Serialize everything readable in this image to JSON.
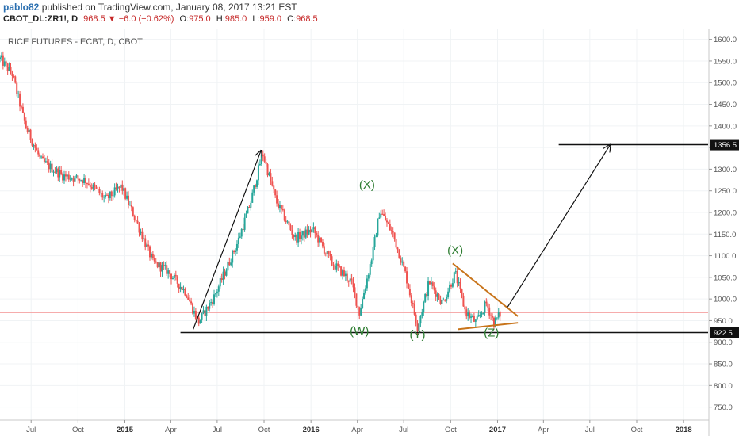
{
  "header": {
    "author": "pablo82",
    "published_text": "published on TradingView.com, January 08, 2017 13:21 EST",
    "symbol": "CBOT_DL:ZR1!, D",
    "last": "968.5",
    "change": "−6.0 (−0.62%)",
    "open_label": "O:",
    "open": "975.0",
    "high_label": "H:",
    "high": "985.0",
    "low_label": "L:",
    "low": "959.0",
    "close_label": "C:",
    "close": "968.5"
  },
  "colors": {
    "up": "#26a69a",
    "down": "#ef5350",
    "wave_label": "#2e7d32",
    "triangle": "#c8741a",
    "price_line": "#f4a0a0",
    "grid": "#f0f3f5",
    "axis_text": "#555555"
  },
  "chart_data": {
    "type": "candlestick",
    "title": "RICE FUTURES - ECBT, D, CBOT",
    "x_tick_labels": [
      "Jul",
      "Oct",
      "2015",
      "Apr",
      "Jul",
      "Oct",
      "2016",
      "Apr",
      "Jul",
      "Oct",
      "2017",
      "Apr",
      "Jul",
      "Oct",
      "2018"
    ],
    "x_tick_dates": [
      "2014-07-01",
      "2014-10-01",
      "2015-01-01",
      "2015-04-01",
      "2015-07-01",
      "2015-10-01",
      "2016-01-01",
      "2016-04-01",
      "2016-07-01",
      "2016-10-01",
      "2017-01-01",
      "2017-04-01",
      "2017-07-01",
      "2017-10-01",
      "2018-01-01"
    ],
    "x_range": [
      "2014-05-01",
      "2018-02-18"
    ],
    "y_ticks": [
      750.0,
      800.0,
      850.0,
      900.0,
      950.0,
      1000.0,
      1050.0,
      1100.0,
      1150.0,
      1200.0,
      1250.0,
      1300.0,
      1350.0,
      1400.0,
      1450.0,
      1500.0,
      1550.0,
      1600.0
    ],
    "y_tick_labels": [
      "750.0",
      "800.0",
      "850.0",
      "900.0",
      "950.0",
      "1000.0",
      "1050.0",
      "1100.0",
      "1150.0",
      "1200.0",
      "1250.0",
      "1300.0",
      "1350.0",
      "1400.0",
      "1450.0",
      "1500.0",
      "1550.0",
      "1600.0"
    ],
    "ylim": [
      720,
      1625
    ],
    "price_path": [
      {
        "date": "2014-05-01",
        "value": 1555
      },
      {
        "date": "2014-05-25",
        "value": 1520
      },
      {
        "date": "2014-06-20",
        "value": 1400
      },
      {
        "date": "2014-07-20",
        "value": 1320
      },
      {
        "date": "2014-09-01",
        "value": 1285
      },
      {
        "date": "2014-10-15",
        "value": 1275
      },
      {
        "date": "2014-11-25",
        "value": 1230
      },
      {
        "date": "2014-12-25",
        "value": 1260
      },
      {
        "date": "2015-01-25",
        "value": 1175
      },
      {
        "date": "2015-02-25",
        "value": 1085
      },
      {
        "date": "2015-03-25",
        "value": 1065
      },
      {
        "date": "2015-05-01",
        "value": 1015
      },
      {
        "date": "2015-05-25",
        "value": 945
      },
      {
        "date": "2015-06-25",
        "value": 1005
      },
      {
        "date": "2015-08-10",
        "value": 1130
      },
      {
        "date": "2015-09-05",
        "value": 1225
      },
      {
        "date": "2015-09-28",
        "value": 1338
      },
      {
        "date": "2015-10-25",
        "value": 1225
      },
      {
        "date": "2015-12-01",
        "value": 1140
      },
      {
        "date": "2016-01-05",
        "value": 1160
      },
      {
        "date": "2016-02-10",
        "value": 1085
      },
      {
        "date": "2016-03-20",
        "value": 1040
      },
      {
        "date": "2016-04-05",
        "value": 968
      },
      {
        "date": "2016-05-01",
        "value": 1105
      },
      {
        "date": "2016-05-15",
        "value": 1205
      },
      {
        "date": "2016-06-10",
        "value": 1150
      },
      {
        "date": "2016-07-05",
        "value": 1055
      },
      {
        "date": "2016-07-28",
        "value": 935
      },
      {
        "date": "2016-08-20",
        "value": 1040
      },
      {
        "date": "2016-09-15",
        "value": 990
      },
      {
        "date": "2016-10-10",
        "value": 1060
      },
      {
        "date": "2016-10-30",
        "value": 970
      },
      {
        "date": "2016-11-20",
        "value": 945
      },
      {
        "date": "2016-12-10",
        "value": 990
      },
      {
        "date": "2016-12-25",
        "value": 945
      },
      {
        "date": "2017-01-08",
        "value": 968.5
      }
    ],
    "last_price": 968.5,
    "last_price_label": "968.5",
    "support_level": 922.5,
    "support_label": "922.5",
    "target_level": 1356.5,
    "target_label": "1356.5",
    "wave_labels": [
      {
        "text": "(W)",
        "date": "2016-04-05",
        "value": 917
      },
      {
        "text": "(X)",
        "date": "2016-04-20",
        "value": 1255
      },
      {
        "text": "(Y)",
        "date": "2016-07-28",
        "value": 909
      },
      {
        "text": "(X)",
        "date": "2016-10-10",
        "value": 1104
      },
      {
        "text": "(Z)",
        "date": "2016-12-20",
        "value": 913
      }
    ],
    "arrows": [
      {
        "from": {
          "date": "2015-05-15",
          "value": 930
        },
        "to": {
          "date": "2015-09-25",
          "value": 1343
        }
      },
      {
        "from": {
          "date": "2017-01-20",
          "value": 980
        },
        "to": {
          "date": "2017-08-10",
          "value": 1356.5
        }
      }
    ],
    "triangle": {
      "upper": {
        "from": {
          "date": "2016-10-05",
          "value": 1082
        },
        "to": {
          "date": "2017-02-10",
          "value": 960
        }
      },
      "lower": {
        "from": {
          "date": "2016-10-15",
          "value": 930
        },
        "to": {
          "date": "2017-02-10",
          "value": 945
        }
      }
    },
    "support_line_range": [
      "2015-04-20",
      "2018-02-18"
    ],
    "target_line_range": [
      "2017-05-01",
      "2018-02-18"
    ]
  }
}
